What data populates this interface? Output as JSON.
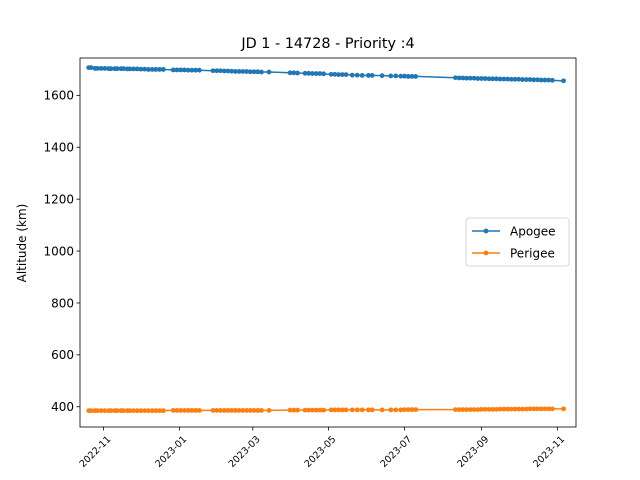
{
  "chart_data": {
    "type": "line",
    "title": "JD 1 - 14728 - Priority :4",
    "xlabel": "",
    "ylabel": "Altitude (km)",
    "x_type": "date",
    "xlim": [
      "2022-10-13",
      "2023-11-16"
    ],
    "ylim": [
      322,
      1744
    ],
    "grid": false,
    "legend_position": "center-right",
    "x_ticks": [
      "2022-11",
      "2023-01",
      "2023-03",
      "2023-05",
      "2023-07",
      "2023-09",
      "2023-11"
    ],
    "y_ticks": [
      400,
      600,
      800,
      1000,
      1200,
      1400,
      1600
    ],
    "series": [
      {
        "name": "Apogee",
        "color": "#1f77b4",
        "marker": "circle",
        "x": [
          "2022-10-20",
          "2022-10-22",
          "2022-10-25",
          "2022-10-27",
          "2022-10-30",
          "2022-11-02",
          "2022-11-05",
          "2022-11-07",
          "2022-11-10",
          "2022-11-12",
          "2022-11-15",
          "2022-11-17",
          "2022-11-20",
          "2022-11-22",
          "2022-11-25",
          "2022-11-28",
          "2022-12-01",
          "2022-12-04",
          "2022-12-07",
          "2022-12-10",
          "2022-12-13",
          "2022-12-16",
          "2022-12-19",
          "2022-12-27",
          "2022-12-30",
          "2023-01-02",
          "2023-01-05",
          "2023-01-08",
          "2023-01-11",
          "2023-01-14",
          "2023-01-17",
          "2023-01-28",
          "2023-01-31",
          "2023-02-03",
          "2023-02-06",
          "2023-02-09",
          "2023-02-12",
          "2023-02-15",
          "2023-02-18",
          "2023-02-21",
          "2023-02-24",
          "2023-02-27",
          "2023-03-02",
          "2023-03-05",
          "2023-03-08",
          "2023-03-14",
          "2023-03-31",
          "2023-04-03",
          "2023-04-06",
          "2023-04-12",
          "2023-04-15",
          "2023-04-18",
          "2023-04-21",
          "2023-04-24",
          "2023-04-27",
          "2023-05-03",
          "2023-05-06",
          "2023-05-09",
          "2023-05-12",
          "2023-05-15",
          "2023-05-20",
          "2023-05-24",
          "2023-05-28",
          "2023-06-02",
          "2023-06-05",
          "2023-06-13",
          "2023-06-20",
          "2023-06-24",
          "2023-06-28",
          "2023-07-01",
          "2023-07-04",
          "2023-07-07",
          "2023-07-10",
          "2023-08-11",
          "2023-08-14",
          "2023-08-17",
          "2023-08-20",
          "2023-08-23",
          "2023-08-26",
          "2023-08-29",
          "2023-09-01",
          "2023-09-04",
          "2023-09-07",
          "2023-09-10",
          "2023-09-13",
          "2023-09-16",
          "2023-09-19",
          "2023-09-22",
          "2023-09-25",
          "2023-09-28",
          "2023-10-01",
          "2023-10-04",
          "2023-10-07",
          "2023-10-10",
          "2023-10-13",
          "2023-10-16",
          "2023-10-19",
          "2023-10-22",
          "2023-10-25",
          "2023-10-28",
          "2023-11-06"
        ],
        "y": [
          1707,
          1707,
          1704,
          1704,
          1704,
          1704,
          1703,
          1703,
          1703,
          1703,
          1703,
          1703,
          1702,
          1702,
          1702,
          1702,
          1701,
          1701,
          1700,
          1700,
          1700,
          1700,
          1700,
          1698,
          1698,
          1698,
          1698,
          1697,
          1697,
          1697,
          1697,
          1695,
          1695,
          1695,
          1694,
          1694,
          1693,
          1692,
          1692,
          1692,
          1692,
          1691,
          1691,
          1691,
          1690,
          1690,
          1687,
          1687,
          1686,
          1685,
          1685,
          1684,
          1684,
          1684,
          1683,
          1681,
          1681,
          1680,
          1680,
          1680,
          1678,
          1678,
          1677,
          1677,
          1677,
          1676,
          1675,
          1675,
          1674,
          1674,
          1673,
          1673,
          1673,
          1668,
          1667,
          1667,
          1666,
          1666,
          1666,
          1665,
          1665,
          1665,
          1664,
          1664,
          1664,
          1663,
          1663,
          1663,
          1662,
          1662,
          1662,
          1661,
          1661,
          1661,
          1660,
          1660,
          1659,
          1659,
          1659,
          1658,
          1656
        ]
      },
      {
        "name": "Perigee",
        "color": "#ff7f0e",
        "marker": "circle",
        "x": [
          "2022-10-20",
          "2022-10-22",
          "2022-10-25",
          "2022-10-27",
          "2022-10-30",
          "2022-11-02",
          "2022-11-05",
          "2022-11-07",
          "2022-11-10",
          "2022-11-12",
          "2022-11-15",
          "2022-11-17",
          "2022-11-20",
          "2022-11-22",
          "2022-11-25",
          "2022-11-28",
          "2022-12-01",
          "2022-12-04",
          "2022-12-07",
          "2022-12-10",
          "2022-12-13",
          "2022-12-16",
          "2022-12-19",
          "2022-12-27",
          "2022-12-30",
          "2023-01-02",
          "2023-01-05",
          "2023-01-08",
          "2023-01-11",
          "2023-01-14",
          "2023-01-17",
          "2023-01-28",
          "2023-01-31",
          "2023-02-03",
          "2023-02-06",
          "2023-02-09",
          "2023-02-12",
          "2023-02-15",
          "2023-02-18",
          "2023-02-21",
          "2023-02-24",
          "2023-02-27",
          "2023-03-02",
          "2023-03-05",
          "2023-03-08",
          "2023-03-14",
          "2023-03-31",
          "2023-04-03",
          "2023-04-06",
          "2023-04-12",
          "2023-04-15",
          "2023-04-18",
          "2023-04-21",
          "2023-04-24",
          "2023-04-27",
          "2023-05-03",
          "2023-05-06",
          "2023-05-09",
          "2023-05-12",
          "2023-05-15",
          "2023-05-20",
          "2023-05-24",
          "2023-05-28",
          "2023-06-02",
          "2023-06-05",
          "2023-06-13",
          "2023-06-20",
          "2023-06-24",
          "2023-06-28",
          "2023-07-01",
          "2023-07-04",
          "2023-07-07",
          "2023-07-10",
          "2023-08-11",
          "2023-08-14",
          "2023-08-17",
          "2023-08-20",
          "2023-08-23",
          "2023-08-26",
          "2023-08-29",
          "2023-09-01",
          "2023-09-04",
          "2023-09-07",
          "2023-09-10",
          "2023-09-13",
          "2023-09-16",
          "2023-09-19",
          "2023-09-22",
          "2023-09-25",
          "2023-09-28",
          "2023-10-01",
          "2023-10-04",
          "2023-10-07",
          "2023-10-10",
          "2023-10-13",
          "2023-10-16",
          "2023-10-19",
          "2023-10-22",
          "2023-10-25",
          "2023-10-28",
          "2023-11-06"
        ],
        "y": [
          385,
          385,
          385,
          385,
          385,
          385,
          385,
          385,
          385,
          385,
          385,
          385,
          385,
          385,
          385,
          385,
          385,
          385,
          385,
          385,
          385,
          385,
          385,
          386,
          386,
          386,
          386,
          386,
          386,
          386,
          386,
          386,
          386,
          386,
          386,
          386,
          386,
          386,
          386,
          386,
          386,
          386,
          386,
          386,
          386,
          386,
          387,
          387,
          387,
          387,
          387,
          387,
          387,
          387,
          387,
          388,
          388,
          388,
          388,
          388,
          388,
          388,
          388,
          388,
          388,
          388,
          388,
          388,
          388,
          389,
          389,
          389,
          389,
          389,
          389,
          389,
          389,
          389,
          389,
          389,
          390,
          390,
          390,
          390,
          390,
          391,
          391,
          391,
          391,
          391,
          391,
          391,
          391,
          392,
          392,
          392,
          392,
          392,
          392,
          392,
          392
        ]
      }
    ]
  }
}
